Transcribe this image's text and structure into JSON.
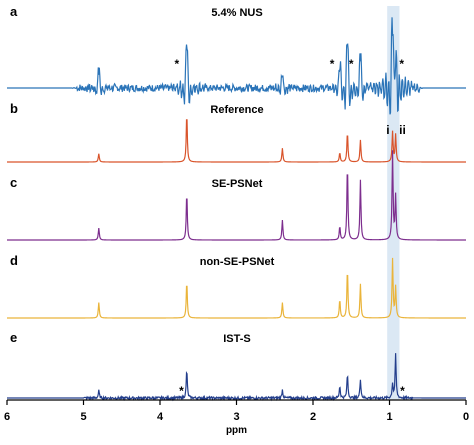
{
  "chart_data": {
    "type": "line",
    "xlabel": "ppm",
    "xlim": [
      6,
      0
    ],
    "x_reversed": true,
    "xticks": [
      6,
      5,
      4,
      3,
      2,
      1,
      0
    ],
    "highlight_band": {
      "from": 1.03,
      "to": 0.87,
      "color": "#dbe8f4"
    },
    "panels": [
      {
        "letter": "a",
        "title": "5.4% NUS",
        "color": "#2b74b8",
        "kind": "noisy",
        "peaks": [
          {
            "ppm": 4.8,
            "height": 0.25
          },
          {
            "ppm": 3.65,
            "height": 0.6
          },
          {
            "ppm": 2.4,
            "height": 0.2
          },
          {
            "ppm": 1.65,
            "height": 0.3
          },
          {
            "ppm": 1.55,
            "height": 0.65
          },
          {
            "ppm": 1.38,
            "height": 0.45
          },
          {
            "ppm": 0.96,
            "height": 1.0
          },
          {
            "ppm": 0.92,
            "height": 0.55
          }
        ],
        "annotations": [
          {
            "text": "*",
            "ppm": 3.78
          },
          {
            "text": "*",
            "ppm": 1.75
          },
          {
            "text": "*",
            "ppm": 1.5
          },
          {
            "text": "*",
            "ppm": 0.84
          }
        ]
      },
      {
        "letter": "b",
        "title": "Reference",
        "color": "#d9542b",
        "kind": "clean",
        "peaks": [
          {
            "ppm": 4.8,
            "height": 0.15
          },
          {
            "ppm": 3.65,
            "height": 0.9
          },
          {
            "ppm": 2.4,
            "height": 0.25
          },
          {
            "ppm": 1.65,
            "height": 0.17
          },
          {
            "ppm": 1.55,
            "height": 0.55
          },
          {
            "ppm": 1.38,
            "height": 0.4
          },
          {
            "ppm": 0.96,
            "height": 0.55
          },
          {
            "ppm": 0.92,
            "height": 0.5
          }
        ],
        "annotations": [
          {
            "text": "i",
            "ppm": 1.02
          },
          {
            "text": "ii",
            "ppm": 0.83
          }
        ]
      },
      {
        "letter": "c",
        "title": "SE-PSNet",
        "color": "#7d2e8e",
        "kind": "clean",
        "peaks": [
          {
            "ppm": 4.8,
            "height": 0.15
          },
          {
            "ppm": 3.65,
            "height": 0.6
          },
          {
            "ppm": 2.4,
            "height": 0.25
          },
          {
            "ppm": 1.65,
            "height": 0.17
          },
          {
            "ppm": 1.55,
            "height": 0.95
          },
          {
            "ppm": 1.38,
            "height": 0.75
          },
          {
            "ppm": 0.96,
            "height": 1.1
          },
          {
            "ppm": 0.92,
            "height": 0.55
          }
        ],
        "annotations": []
      },
      {
        "letter": "d",
        "title": "non-SE-PSNet",
        "color": "#eab43a",
        "kind": "clean",
        "peaks": [
          {
            "ppm": 4.8,
            "height": 0.25
          },
          {
            "ppm": 3.65,
            "height": 0.6
          },
          {
            "ppm": 2.4,
            "height": 0.25
          },
          {
            "ppm": 1.65,
            "height": 0.3
          },
          {
            "ppm": 1.55,
            "height": 0.8
          },
          {
            "ppm": 1.38,
            "height": 0.55
          },
          {
            "ppm": 0.96,
            "height": 0.95
          },
          {
            "ppm": 0.92,
            "height": 0.5
          }
        ],
        "annotations": []
      },
      {
        "letter": "e",
        "title": "IST-S",
        "color": "#233e8c",
        "kind": "slightly-noisy",
        "peaks": [
          {
            "ppm": 4.8,
            "height": 0.15
          },
          {
            "ppm": 3.65,
            "height": 0.6
          },
          {
            "ppm": 2.4,
            "height": 0.17
          },
          {
            "ppm": 1.65,
            "height": 0.25
          },
          {
            "ppm": 1.55,
            "height": 0.5
          },
          {
            "ppm": 1.38,
            "height": 0.4
          },
          {
            "ppm": 0.96,
            "height": 0.3
          },
          {
            "ppm": 0.92,
            "height": 0.9
          }
        ],
        "annotations": [
          {
            "text": "*",
            "ppm": 3.72
          },
          {
            "text": "*",
            "ppm": 0.83
          }
        ]
      }
    ]
  }
}
